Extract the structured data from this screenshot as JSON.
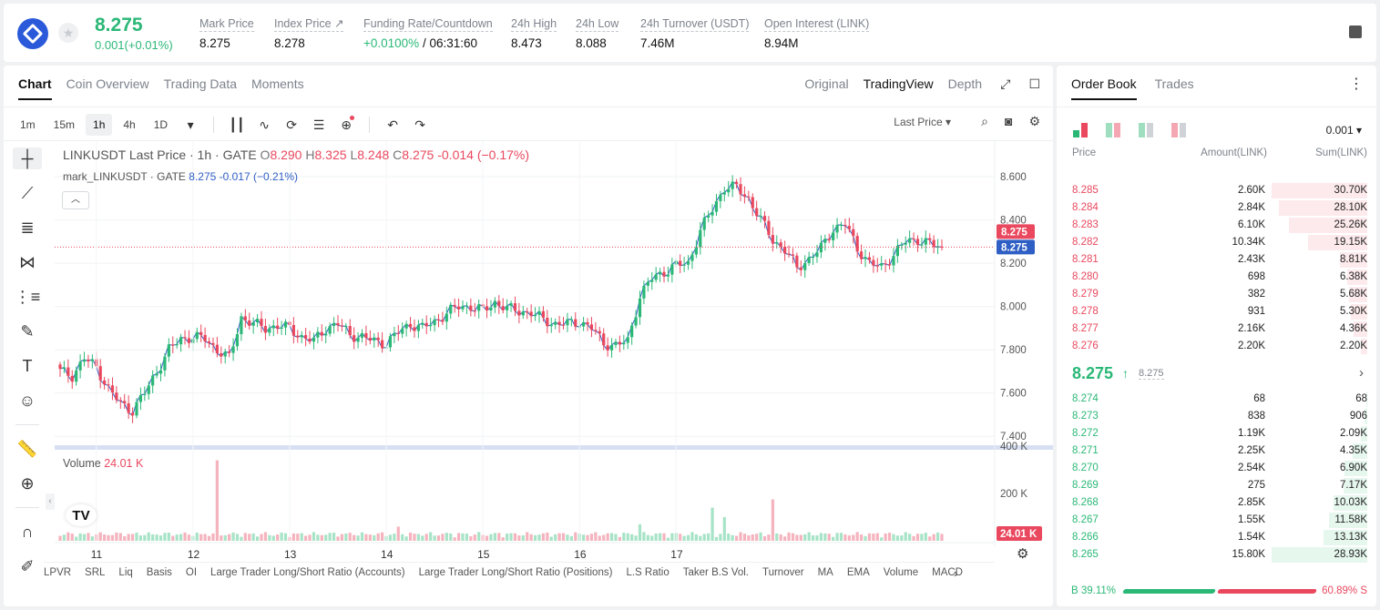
{
  "ticker": {
    "last_price": "8.275",
    "change": "0.001(+0.01%)",
    "stats": [
      {
        "label": "Mark Price",
        "value": "8.275"
      },
      {
        "label": "Index Price ↗",
        "value": "8.278"
      },
      {
        "label": "Funding Rate/Countdown",
        "value_green": "+0.0100%",
        "value": " / 06:31:60"
      },
      {
        "label": "24h High",
        "value": "8.473"
      },
      {
        "label": "24h Low",
        "value": "8.088"
      },
      {
        "label": "24h Turnover (USDT)",
        "value": "7.46M"
      },
      {
        "label": "Open Interest (LINK)",
        "value": "8.94M"
      }
    ]
  },
  "chart_tabs": [
    "Chart",
    "Coin Overview",
    "Trading Data",
    "Moments"
  ],
  "view_tabs": [
    "Original",
    "TradingView",
    "Depth"
  ],
  "timeframes": [
    "1m",
    "15m",
    "1h",
    "4h",
    "1D"
  ],
  "price_source": "Last Price",
  "legend": {
    "symbol": "LINKUSDT Last Price · 1h · GATE",
    "o_label": "O",
    "o": "8.290",
    "h_label": "H",
    "h": "8.325",
    "l_label": "L",
    "l": "8.248",
    "c_label": "C",
    "c": "8.275",
    "chg": "-0.014 (−0.17%)",
    "mark_name": "mark_LINKUSDT · GATE",
    "mark_val": "8.275 -0.017 (−0.21%)"
  },
  "volume_legend": {
    "label": "Volume",
    "value": "24.01 K"
  },
  "indicators": [
    "LPVR",
    "SRL",
    "Liq",
    "Basis",
    "OI",
    "Large Trader Long/Short Ratio (Accounts)",
    "Large Trader Long/Short Ratio (Positions)",
    "L.S Ratio",
    "Taker B.S Vol.",
    "Turnover",
    "MA",
    "EMA",
    "Volume",
    "MACD"
  ],
  "chart_data": {
    "type": "candlestick",
    "price_axis": {
      "ticks": [
        "8.600",
        "8.400",
        "8.200",
        "8.000",
        "7.800",
        "7.600",
        "7.400"
      ],
      "range": [
        7.38,
        8.63
      ]
    },
    "volume_axis": {
      "ticks": [
        "400 K",
        "200 K"
      ],
      "range": [
        0,
        400000
      ]
    },
    "x_ticks": [
      "11",
      "12",
      "13",
      "14",
      "15",
      "16",
      "17"
    ],
    "last_price_tag": "8.275",
    "mark_price_tag": "8.275",
    "volume_tag": "24.01 K",
    "colors": {
      "up": "#2bb877",
      "down": "#e9485e",
      "mark_line": "#2f5ec4"
    },
    "anchor_closes": [
      [
        0,
        7.7
      ],
      [
        3,
        7.68
      ],
      [
        6,
        7.76
      ],
      [
        9,
        7.72
      ],
      [
        12,
        7.62
      ],
      [
        15,
        7.55
      ],
      [
        18,
        7.52
      ],
      [
        21,
        7.6
      ],
      [
        24,
        7.7
      ],
      [
        27,
        7.8
      ],
      [
        30,
        7.85
      ],
      [
        33,
        7.86
      ],
      [
        36,
        7.85
      ],
      [
        39,
        7.8
      ],
      [
        42,
        7.76
      ],
      [
        45,
        7.95
      ],
      [
        48,
        7.92
      ],
      [
        51,
        7.9
      ],
      [
        54,
        7.91
      ],
      [
        57,
        7.9
      ],
      [
        60,
        7.86
      ],
      [
        63,
        7.84
      ],
      [
        66,
        7.9
      ],
      [
        69,
        7.92
      ],
      [
        72,
        7.87
      ],
      [
        75,
        7.86
      ],
      [
        78,
        7.84
      ],
      [
        81,
        7.83
      ],
      [
        84,
        7.88
      ],
      [
        87,
        7.92
      ],
      [
        90,
        7.9
      ],
      [
        93,
        7.93
      ],
      [
        96,
        7.97
      ],
      [
        99,
        8.0
      ],
      [
        102,
        8.0
      ],
      [
        105,
        7.98
      ],
      [
        108,
        8.02
      ],
      [
        111,
        7.99
      ],
      [
        114,
        7.98
      ],
      [
        117,
        7.97
      ],
      [
        120,
        7.94
      ],
      [
        123,
        7.92
      ],
      [
        126,
        7.92
      ],
      [
        129,
        7.93
      ],
      [
        132,
        7.9
      ],
      [
        135,
        7.83
      ],
      [
        138,
        7.82
      ],
      [
        141,
        7.84
      ],
      [
        144,
        8.05
      ],
      [
        147,
        8.13
      ],
      [
        150,
        8.16
      ],
      [
        153,
        8.19
      ],
      [
        156,
        8.2
      ],
      [
        159,
        8.35
      ],
      [
        162,
        8.45
      ],
      [
        165,
        8.55
      ],
      [
        168,
        8.55
      ],
      [
        171,
        8.5
      ],
      [
        174,
        8.4
      ],
      [
        177,
        8.31
      ],
      [
        180,
        8.26
      ],
      [
        183,
        8.18
      ],
      [
        186,
        8.22
      ],
      [
        189,
        8.27
      ],
      [
        192,
        8.36
      ],
      [
        195,
        8.38
      ],
      [
        198,
        8.27
      ],
      [
        201,
        8.2
      ],
      [
        204,
        8.18
      ],
      [
        207,
        8.24
      ],
      [
        210,
        8.3
      ],
      [
        213,
        8.31
      ],
      [
        216,
        8.29
      ],
      [
        219,
        8.27
      ]
    ],
    "volume_spikes": [
      [
        39,
        340000
      ],
      [
        177,
        175000
      ],
      [
        162,
        140000
      ],
      [
        165,
        100000
      ],
      [
        144,
        70000
      ],
      [
        84,
        60000
      ]
    ]
  },
  "orderbook": {
    "tabs": [
      "Order Book",
      "Trades"
    ],
    "precision": "0.001",
    "headers": {
      "price": "Price",
      "amount": "Amount(LINK)",
      "sum": "Sum(LINK)"
    },
    "asks": [
      {
        "price": "8.285",
        "amount": "2.60K",
        "sum": "30.70K",
        "depth": 1.0
      },
      {
        "price": "8.284",
        "amount": "2.84K",
        "sum": "28.10K",
        "depth": 0.92
      },
      {
        "price": "8.283",
        "amount": "6.10K",
        "sum": "25.26K",
        "depth": 0.82
      },
      {
        "price": "8.282",
        "amount": "10.34K",
        "sum": "19.15K",
        "depth": 0.62
      },
      {
        "price": "8.281",
        "amount": "2.43K",
        "sum": "8.81K",
        "depth": 0.29
      },
      {
        "price": "8.280",
        "amount": "698",
        "sum": "6.38K",
        "depth": 0.21
      },
      {
        "price": "8.279",
        "amount": "382",
        "sum": "5.68K",
        "depth": 0.19
      },
      {
        "price": "8.278",
        "amount": "931",
        "sum": "5.30K",
        "depth": 0.17
      },
      {
        "price": "8.277",
        "amount": "2.16K",
        "sum": "4.36K",
        "depth": 0.14
      },
      {
        "price": "8.276",
        "amount": "2.20K",
        "sum": "2.20K",
        "depth": 0.07
      }
    ],
    "mid": {
      "price": "8.275",
      "mark": "8.275"
    },
    "bids": [
      {
        "price": "8.274",
        "amount": "68",
        "sum": "68",
        "depth": 0.01
      },
      {
        "price": "8.273",
        "amount": "838",
        "sum": "906",
        "depth": 0.03
      },
      {
        "price": "8.272",
        "amount": "1.19K",
        "sum": "2.09K",
        "depth": 0.07
      },
      {
        "price": "8.271",
        "amount": "2.25K",
        "sum": "4.35K",
        "depth": 0.15
      },
      {
        "price": "8.270",
        "amount": "2.54K",
        "sum": "6.90K",
        "depth": 0.24
      },
      {
        "price": "8.269",
        "amount": "275",
        "sum": "7.17K",
        "depth": 0.25
      },
      {
        "price": "8.268",
        "amount": "2.85K",
        "sum": "10.03K",
        "depth": 0.35
      },
      {
        "price": "8.267",
        "amount": "1.55K",
        "sum": "11.58K",
        "depth": 0.4
      },
      {
        "price": "8.266",
        "amount": "1.54K",
        "sum": "13.13K",
        "depth": 0.46
      },
      {
        "price": "8.265",
        "amount": "15.80K",
        "sum": "28.93K",
        "depth": 1.0
      }
    ],
    "buy_ratio": "B 39.11%",
    "sell_ratio": "60.89% S"
  }
}
